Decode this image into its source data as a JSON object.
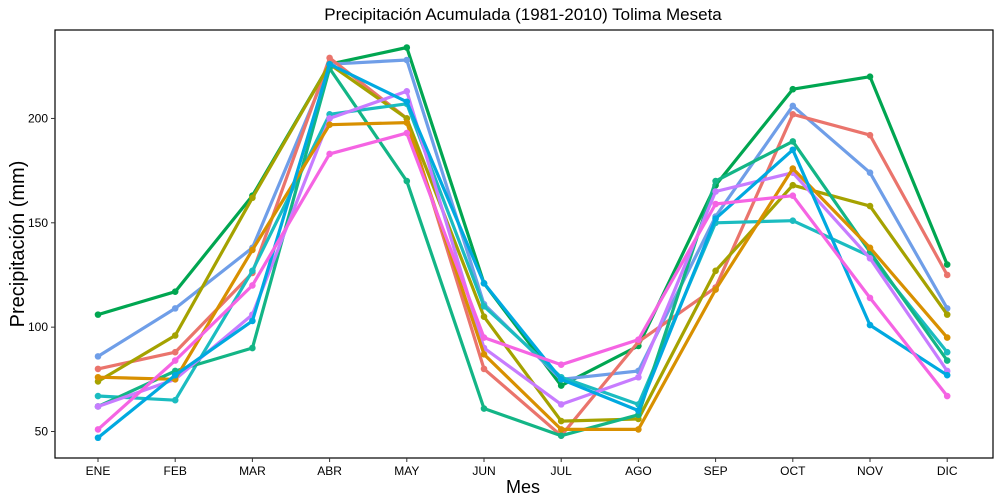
{
  "chart_data": {
    "type": "line",
    "title": "Precipitación Acumulada (1981-2010)  Tolima Meseta",
    "xlabel": "Mes",
    "ylabel": "Precipitación  (mm)",
    "categories": [
      "ENE",
      "FEB",
      "MAR",
      "ABR",
      "MAY",
      "JUN",
      "JUL",
      "AGO",
      "SEP",
      "OCT",
      "NOV",
      "DIC"
    ],
    "y_ticks": [
      50,
      100,
      150,
      200
    ],
    "ylim": [
      35,
      240
    ],
    "grid": false,
    "legend": "none",
    "series": [
      {
        "color": "#00a651",
        "values": [
          106,
          117,
          163,
          226,
          234,
          121,
          72,
          91,
          168,
          214,
          220,
          130
        ]
      },
      {
        "color": "#6f9ee8",
        "values": [
          86,
          109,
          138,
          226,
          228,
          111,
          75,
          79,
          153,
          206,
          174,
          109
        ]
      },
      {
        "color": "#ea746c",
        "values": [
          80,
          88,
          126,
          229,
          200,
          80,
          48,
          93,
          119,
          202,
          192,
          125
        ]
      },
      {
        "color": "#a5a200",
        "values": [
          74,
          96,
          162,
          226,
          200,
          105,
          55,
          56,
          127,
          168,
          158,
          106
        ]
      },
      {
        "color": "#1bbcc0",
        "values": [
          67,
          65,
          127,
          202,
          207,
          110,
          76,
          63,
          150,
          151,
          134,
          88
        ]
      },
      {
        "color": "#13b586",
        "values": [
          62,
          79,
          90,
          224,
          170,
          61,
          48,
          58,
          170,
          189,
          136,
          84
        ]
      },
      {
        "color": "#c77cff",
        "values": [
          62,
          75,
          106,
          200,
          213,
          90,
          63,
          76,
          165,
          174,
          133,
          79
        ]
      },
      {
        "color": "#d89000",
        "values": [
          76,
          75,
          137,
          197,
          198,
          87,
          51,
          51,
          118,
          176,
          138,
          95
        ]
      },
      {
        "color": "#00a9e0",
        "values": [
          47,
          77,
          103,
          226,
          208,
          121,
          75,
          60,
          152,
          185,
          101,
          77
        ]
      },
      {
        "color": "#f564e3",
        "values": [
          51,
          84,
          120,
          183,
          193,
          95,
          82,
          94,
          159,
          163,
          114,
          67
        ]
      }
    ]
  }
}
